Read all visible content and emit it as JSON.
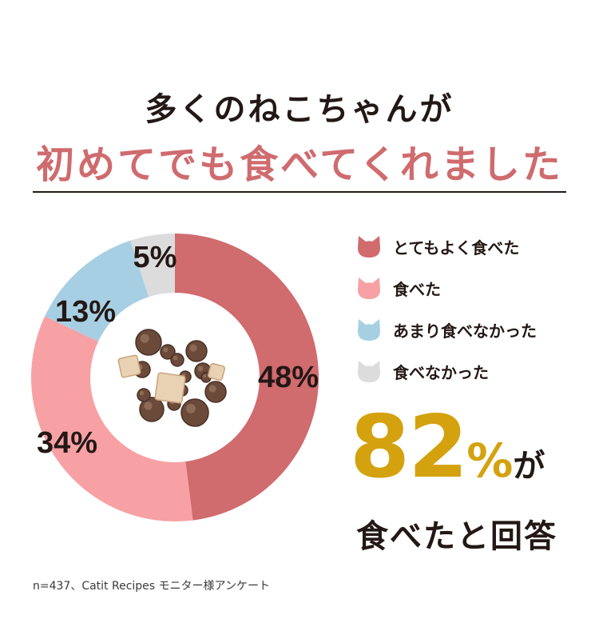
{
  "heading": {
    "line1": "多くのねこちゃんが",
    "line2": "初めてでも食べてくれました"
  },
  "chart_data": {
    "type": "pie",
    "style": "donut",
    "categories": [
      "とてもよく食べた",
      "食べた",
      "あまり食べなかった",
      "食べなかった"
    ],
    "values": [
      48,
      34,
      13,
      5
    ],
    "value_labels": [
      "48%",
      "34%",
      "13%",
      "5%"
    ],
    "colors": [
      "#d06b6e",
      "#f7a1a4",
      "#a7cfe3",
      "#dcdcdc"
    ],
    "legend_position": "right",
    "center_image": "cat-food-kibble"
  },
  "summary": {
    "number": "82",
    "percent": "%",
    "particle": "が",
    "line2": "食べたと回答"
  },
  "footnote": "n=437、Catit Recipes モニター様アンケート",
  "colors": {
    "accent_title": "#cf6b6e",
    "accent_number": "#d4a20e",
    "text": "#231815"
  }
}
